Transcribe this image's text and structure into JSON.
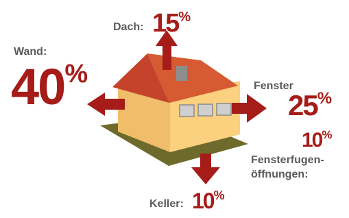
{
  "items": [
    {
      "label": "Dach:",
      "value": "15",
      "unit": "%"
    },
    {
      "label": "Wand:",
      "value": "40",
      "unit": "%"
    },
    {
      "label": "Fenster",
      "value": "25",
      "unit": "%"
    },
    {
      "label_lines": [
        "Fensterfugen-",
        "öffnungen:"
      ],
      "value": "10",
      "unit": "%"
    },
    {
      "label": "Keller:",
      "value": "10",
      "unit": "%"
    }
  ]
}
